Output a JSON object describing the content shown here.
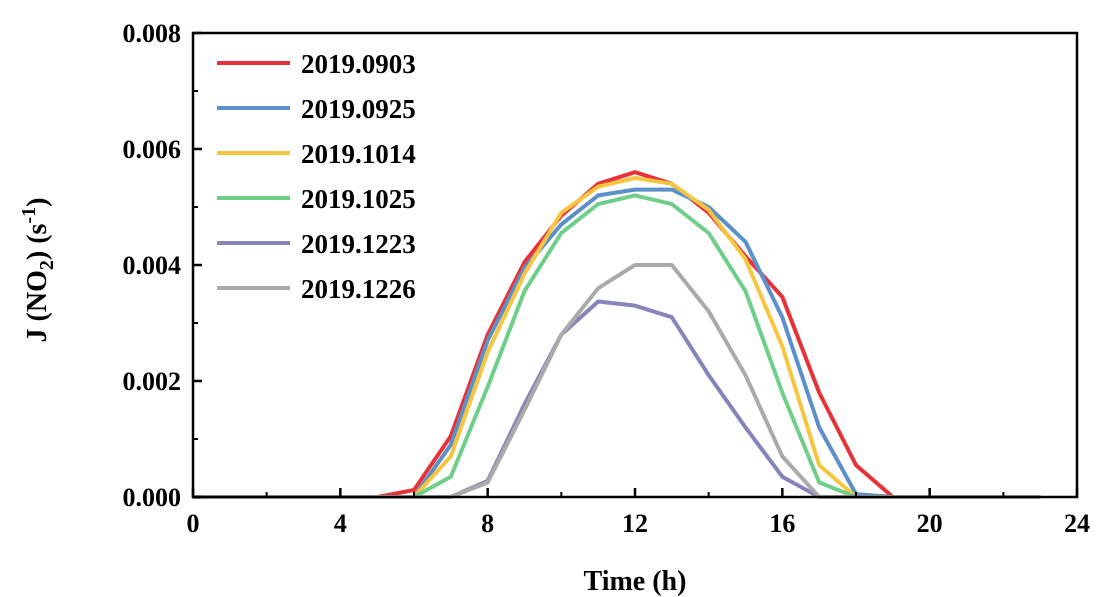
{
  "chart_data": {
    "type": "line",
    "xlabel": "Time (h)",
    "ylabel": "J (NO2) (s-1)",
    "ylabel_parts": {
      "prefix": "J (NO",
      "sub": "2",
      "mid": ") (s",
      "sup": "-1",
      "suffix": ")"
    },
    "xlim": [
      0,
      24
    ],
    "ylim": [
      0,
      0.008
    ],
    "xticks": [
      0,
      4,
      8,
      12,
      16,
      20,
      24
    ],
    "yticks": [
      0,
      0.002,
      0.004,
      0.006,
      0.008
    ],
    "xtick_labels": [
      "0",
      "4",
      "8",
      "12",
      "16",
      "20",
      "24"
    ],
    "ytick_labels": [
      "0.000",
      "0.002",
      "0.004",
      "0.006",
      "0.008"
    ],
    "grid": false,
    "legend_position": "top-left",
    "x": [
      0,
      1,
      2,
      3,
      4,
      5,
      6,
      7,
      8,
      9,
      10,
      11,
      12,
      13,
      14,
      15,
      16,
      17,
      18,
      19,
      20,
      21,
      22,
      23
    ],
    "series": [
      {
        "name": "2019.0903",
        "color": "#e8323a",
        "values": [
          0,
          0,
          0,
          0,
          0,
          0,
          0.00012,
          0.00105,
          0.0028,
          0.00405,
          0.00485,
          0.0054,
          0.0056,
          0.0054,
          0.0049,
          0.00415,
          0.00345,
          0.0018,
          0.00055,
          0,
          0,
          0,
          0,
          0
        ]
      },
      {
        "name": "2019.0925",
        "color": "#5b90c8",
        "values": [
          0,
          0,
          0,
          0,
          0,
          0,
          0,
          0.0009,
          0.0027,
          0.00395,
          0.0047,
          0.0052,
          0.0053,
          0.0053,
          0.005,
          0.0044,
          0.0031,
          0.0012,
          5e-05,
          0,
          0,
          0,
          0,
          0
        ]
      },
      {
        "name": "2019.1014",
        "color": "#f7c640",
        "values": [
          0,
          0,
          0,
          0,
          0,
          0,
          0,
          0.0007,
          0.0025,
          0.00385,
          0.0049,
          0.00535,
          0.0055,
          0.0054,
          0.00495,
          0.0041,
          0.0026,
          0.00055,
          0,
          0,
          0,
          0,
          0,
          0
        ]
      },
      {
        "name": "2019.1025",
        "color": "#6fcf8a",
        "values": [
          0,
          0,
          0,
          0,
          0,
          0,
          0,
          0.00035,
          0.0019,
          0.00355,
          0.00455,
          0.00505,
          0.0052,
          0.00505,
          0.00455,
          0.00355,
          0.0018,
          0.00025,
          0,
          0,
          0,
          0,
          0,
          0
        ]
      },
      {
        "name": "2019.1223",
        "color": "#8585bb",
        "values": [
          0,
          0,
          0,
          0,
          0,
          0,
          0,
          0,
          0.00028,
          0.0016,
          0.0028,
          0.00337,
          0.0033,
          0.0031,
          0.0021,
          0.0012,
          0.00035,
          0,
          0,
          0,
          0,
          0,
          0,
          0
        ]
      },
      {
        "name": "2019.1226",
        "color": "#aaaaaa",
        "values": [
          0,
          0,
          0,
          0,
          0,
          0,
          0,
          0,
          0.00025,
          0.0015,
          0.0028,
          0.0036,
          0.004,
          0.004,
          0.0032,
          0.0021,
          0.0007,
          0,
          0,
          0,
          0,
          0,
          0,
          0
        ]
      }
    ]
  }
}
